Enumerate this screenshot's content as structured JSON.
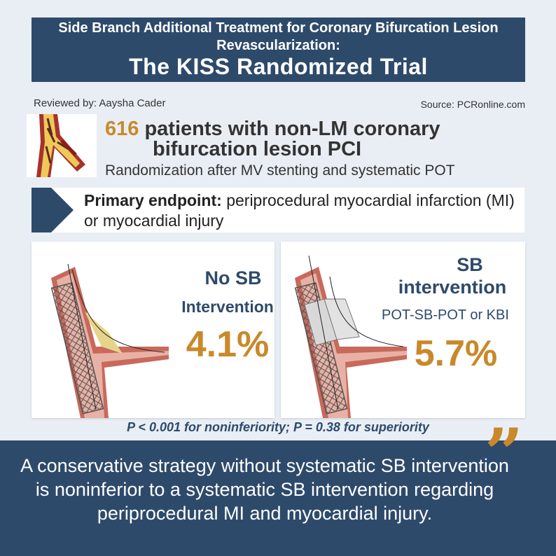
{
  "header": {
    "title_line1": "Side Branch Additional Treatment for Coronary Bifurcation Lesion Revascularization:",
    "title_line2": "The KISS Randomized Trial"
  },
  "meta": {
    "reviewed_by": "Reviewed by: Aaysha Cader",
    "source": "Source: PCRonline.com"
  },
  "population": {
    "count": "616",
    "line1_rest": " patients with non-LM coronary",
    "line2": "bifurcation lesion PCI",
    "randomization": "Randomization after MV stenting and systematic POT"
  },
  "endpoint": {
    "label": "Primary endpoint:",
    "text": " periprocedural myocardial infarction (MI) or myocardial injury"
  },
  "arms": {
    "no_sb": {
      "label_line1": "No SB",
      "label_line2": "Intervention",
      "value": "4.1%"
    },
    "sb": {
      "label_line1": "SB",
      "label_line2": "intervention",
      "sublabel": "POT-SB-POT or KBI",
      "value": "5.7%"
    }
  },
  "p_values": "P < 0.001 for noninferiority; P = 0.38 for superiority",
  "conclusion": "A conservative strategy without systematic SB intervention is noninferior to a systematic SB intervention regarding periprocedural MI and myocardial injury.",
  "icons": [
    "artery-bifurcation-icon",
    "chevron-right-icon",
    "stented-artery-icon",
    "balloon-stent-artery-icon",
    "quote-icon"
  ],
  "colors": {
    "navy": "#2e4a6b",
    "gold": "#c9892a",
    "background": "#e9eef5"
  }
}
